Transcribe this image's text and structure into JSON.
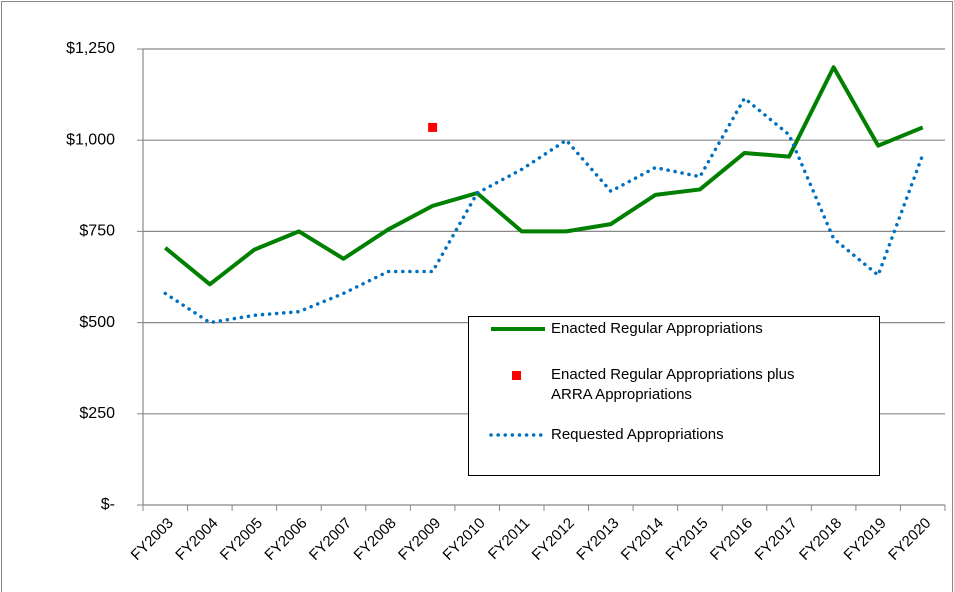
{
  "chart_data": {
    "type": "line",
    "categories": [
      "FY2003",
      "FY2004",
      "FY2005",
      "FY2006",
      "FY2007",
      "FY2008",
      "FY2009",
      "FY2010",
      "FY2011",
      "FY2012",
      "FY2013",
      "FY2014",
      "FY2015",
      "FY2016",
      "FY2017",
      "FY2018",
      "FY2019",
      "FY2020"
    ],
    "series": [
      {
        "name": "Enacted Regular Appropriations",
        "color": "#008000",
        "style": "solid",
        "values": [
          705,
          605,
          700,
          750,
          675,
          755,
          820,
          855,
          750,
          750,
          770,
          850,
          865,
          965,
          955,
          1200,
          985,
          1035
        ]
      },
      {
        "name": "Enacted Regular Appropriations plus ARRA Appropriations",
        "color": "#ff0000",
        "style": "marker",
        "values": [
          null,
          null,
          null,
          null,
          null,
          null,
          1035,
          null,
          null,
          null,
          null,
          null,
          null,
          null,
          null,
          null,
          null,
          null
        ]
      },
      {
        "name": "Requested Appropriations",
        "color": "#0070c0",
        "style": "dotted",
        "values": [
          580,
          500,
          520,
          530,
          580,
          640,
          640,
          855,
          920,
          1000,
          860,
          925,
          900,
          1115,
          1015,
          730,
          630,
          960
        ]
      }
    ],
    "ylim": [
      0,
      1250
    ],
    "yticks": [
      {
        "value": 0,
        "label": "$-"
      },
      {
        "value": 250,
        "label": "$250"
      },
      {
        "value": 500,
        "label": "$500"
      },
      {
        "value": 750,
        "label": "$750"
      },
      {
        "value": 1000,
        "label": "$1,000"
      },
      {
        "value": 1250,
        "label": "$1,250"
      }
    ],
    "grid": true,
    "legend": "lower right"
  }
}
